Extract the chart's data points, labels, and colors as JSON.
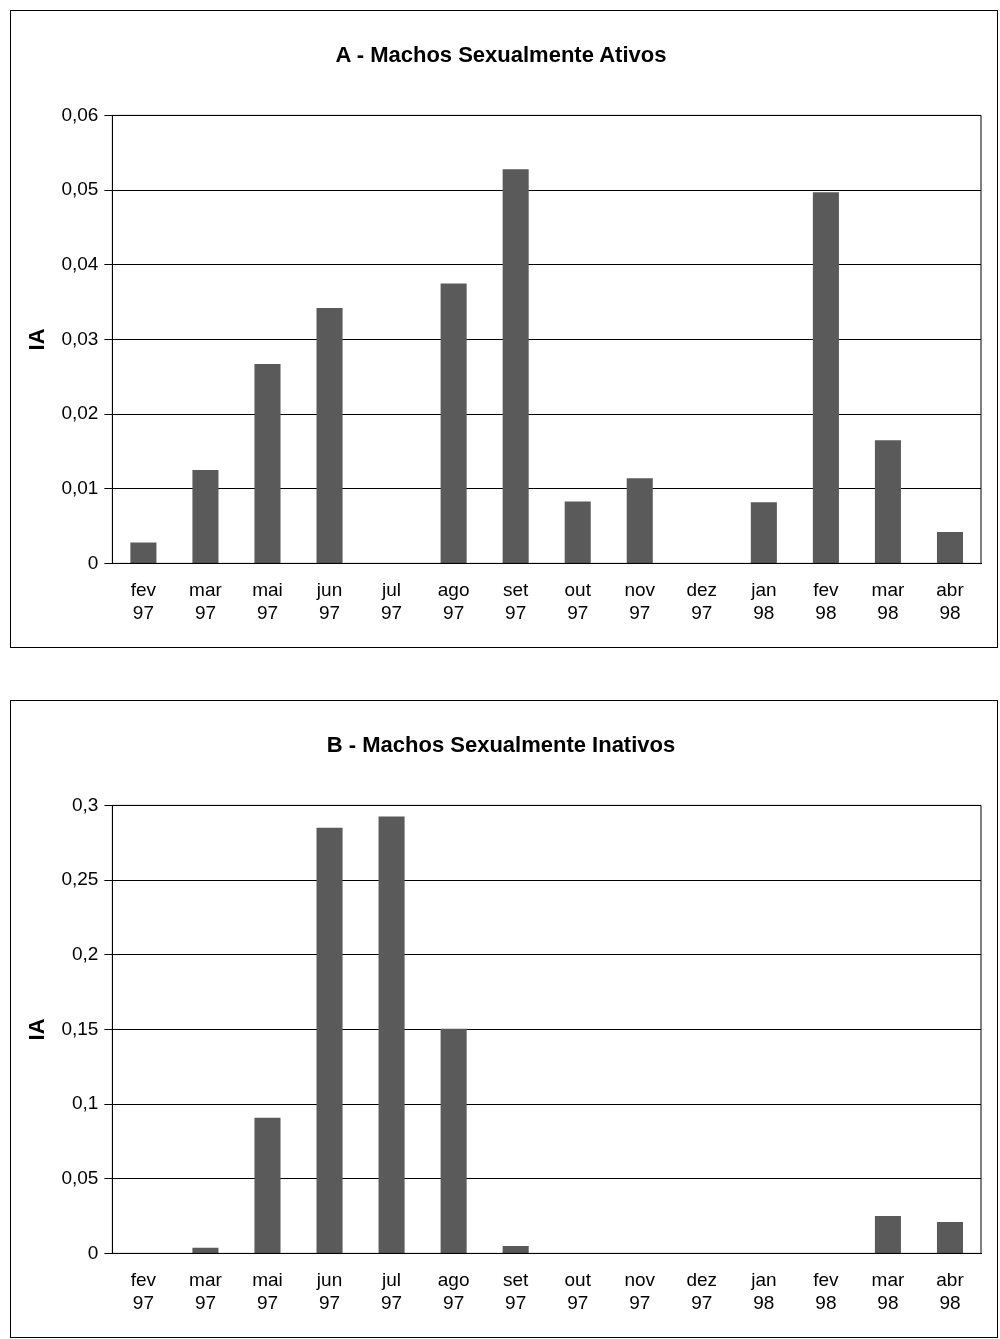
{
  "chart_data": [
    {
      "type": "bar",
      "title": "A - Machos Sexualmente Ativos",
      "ylabel": "IA",
      "categories": [
        "fev 97",
        "mar 97",
        "mai 97",
        "jun 97",
        "jul 97",
        "ago 97",
        "set 97",
        "out 97",
        "nov 97",
        "dez 97",
        "jan 98",
        "fev 98",
        "mar 98",
        "abr 98"
      ],
      "values": [
        0.0028,
        0.0125,
        0.0267,
        0.0342,
        0,
        0.0375,
        0.0528,
        0.0083,
        0.0114,
        0,
        0.0082,
        0.0497,
        0.0165,
        0.0042
      ],
      "color": "#5a5a5a",
      "ylim": [
        0,
        0.06
      ],
      "yticks": [
        {
          "value": 0,
          "label": "0"
        },
        {
          "value": 0.01,
          "label": "0,01"
        },
        {
          "value": 0.02,
          "label": "0,02"
        },
        {
          "value": 0.03,
          "label": "0,03"
        },
        {
          "value": 0.04,
          "label": "0,04"
        },
        {
          "value": 0.05,
          "label": "0,05"
        },
        {
          "value": 0.06,
          "label": "0,06"
        }
      ],
      "grid": "y",
      "legend": false
    },
    {
      "type": "bar",
      "title": "B - Machos Sexualmente Inativos",
      "ylabel": "IA",
      "categories": [
        "fev 97",
        "mar 97",
        "mai 97",
        "jun 97",
        "jul 97",
        "ago 97",
        "set 97",
        "out 97",
        "nov 97",
        "dez 97",
        "jan 98",
        "fev 98",
        "mar 98",
        "abr 98"
      ],
      "values": [
        0,
        0.0038,
        0.0908,
        0.285,
        0.2925,
        0.1505,
        0.005,
        0,
        0,
        0,
        0,
        0,
        0.025,
        0.021
      ],
      "color": "#5a5a5a",
      "ylim": [
        0,
        0.3
      ],
      "yticks": [
        {
          "value": 0,
          "label": "0"
        },
        {
          "value": 0.05,
          "label": "0,05"
        },
        {
          "value": 0.1,
          "label": "0,1"
        },
        {
          "value": 0.15,
          "label": "0,15"
        },
        {
          "value": 0.2,
          "label": "0,2"
        },
        {
          "value": 0.25,
          "label": "0,25"
        },
        {
          "value": 0.3,
          "label": "0,3"
        }
      ],
      "grid": "y",
      "legend": false
    }
  ]
}
